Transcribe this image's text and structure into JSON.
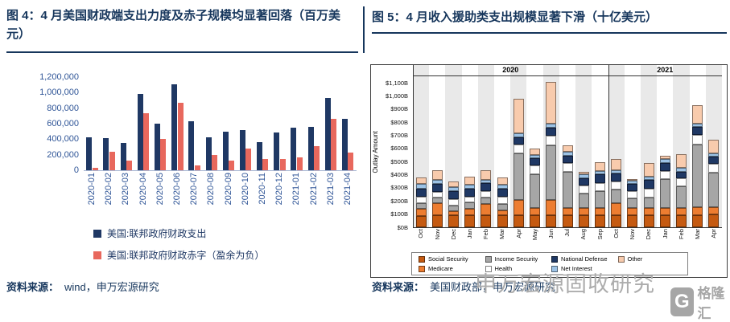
{
  "left": {
    "title": "图 4：4 月美国财政端支出力度及赤子规模均显著回落（百万美元）",
    "source_label": "资料来源：",
    "source_text": "wind，申万宏源研究"
  },
  "right": {
    "title": "图 5：4 月收入援助类支出规模显著下滑（十亿美元）",
    "source_label": "资料来源：",
    "source_text": "美国财政部，申万宏源研究"
  },
  "watermark": {
    "text": "申万宏源固收研究",
    "logo_letter": "G",
    "logo_text": "格隆汇"
  },
  "chart_data": [
    {
      "type": "bar",
      "title": "图 4：4 月美国财政端支出力度及赤子规模均显著回落（百万美元）",
      "unit_note": "百万美元",
      "categories": [
        "2020-01",
        "2020-02",
        "2020-03",
        "2020-04",
        "2020-05",
        "2020-06",
        "2020-07",
        "2020-08",
        "2020-09",
        "2020-10",
        "2020-11",
        "2020-12",
        "2021-01",
        "2021-02",
        "2021-03",
        "2021-04"
      ],
      "series": [
        {
          "name": "美国:联邦政府财政支出",
          "color": "#1F3864",
          "values": [
            424000,
            414000,
            356000,
            980000,
            598000,
            1105000,
            626000,
            420000,
            498000,
            522000,
            365000,
            490000,
            547000,
            559000,
            927000,
            664000
          ]
        },
        {
          "name": "美国:联邦政府财政赤字（盈余为负）",
          "color": "#E8685D",
          "values": [
            33000,
            235000,
            119000,
            738000,
            399000,
            864000,
            63000,
            200000,
            125000,
            284000,
            145000,
            144000,
            163000,
            311000,
            660000,
            226000
          ]
        }
      ],
      "ylim": [
        0,
        1200000
      ],
      "ytick_step": 200000,
      "grid": false,
      "legend_position": "bottom"
    },
    {
      "type": "bar",
      "stacked": true,
      "title": "图 5：4 月收入援助类支出规模显著下滑（十亿美元）",
      "ylabel": "Outlay Amount",
      "ytick_prefix": "$",
      "ytick_suffix": "B",
      "categories": [
        "Oct",
        "Nov",
        "Dec",
        "Jan",
        "Feb",
        "Mar",
        "Apr",
        "May",
        "Jun",
        "Jul",
        "Aug",
        "Sep",
        "Oct",
        "Nov",
        "Dec",
        "Jan",
        "Feb",
        "Mar",
        "Apr"
      ],
      "year_groups": [
        {
          "label": "2020",
          "span": 12
        },
        {
          "label": "2021",
          "span": 7
        }
      ],
      "series": [
        {
          "name": "Social Security",
          "color": "#C55A11",
          "values": [
            88,
            89,
            89,
            90,
            90,
            91,
            91,
            91,
            92,
            92,
            92,
            92,
            93,
            93,
            93,
            94,
            94,
            94,
            95
          ]
        },
        {
          "name": "Medicare",
          "color": "#ED7D31",
          "values": [
            53,
            92,
            36,
            53,
            90,
            39,
            117,
            56,
            118,
            55,
            56,
            56,
            90,
            54,
            54,
            55,
            55,
            56,
            56
          ]
        },
        {
          "name": "Income Security",
          "color": "#A6A6A6",
          "values": [
            43,
            43,
            41,
            44,
            48,
            48,
            352,
            255,
            414,
            277,
            111,
            128,
            105,
            71,
            82,
            221,
            161,
            478,
            266
          ]
        },
        {
          "name": "Health",
          "color": "#FFFFFF",
          "values": [
            48,
            47,
            48,
            48,
            49,
            53,
            68,
            66,
            73,
            64,
            57,
            62,
            60,
            55,
            62,
            60,
            62,
            74,
            67
          ]
        },
        {
          "name": "National Defense",
          "color": "#1F3864",
          "values": [
            64,
            60,
            63,
            57,
            57,
            62,
            55,
            58,
            62,
            58,
            59,
            65,
            63,
            58,
            67,
            57,
            53,
            62,
            54
          ]
        },
        {
          "name": "Net Interest",
          "color": "#9DC3E6",
          "values": [
            33,
            27,
            29,
            35,
            28,
            30,
            32,
            27,
            29,
            29,
            26,
            28,
            26,
            25,
            28,
            31,
            25,
            26,
            27
          ]
        },
        {
          "name": "Other",
          "color": "#F8CBAD",
          "values": [
            51,
            76,
            43,
            60,
            74,
            57,
            265,
            45,
            317,
            51,
            19,
            67,
            85,
            9,
            104,
            29,
            109,
            137,
            99
          ]
        }
      ],
      "legend_display_order": [
        0,
        2,
        4,
        6,
        1,
        3,
        5
      ],
      "ylim": [
        0,
        1150
      ],
      "ytick_step": 100,
      "legend_position": "bottom"
    }
  ]
}
